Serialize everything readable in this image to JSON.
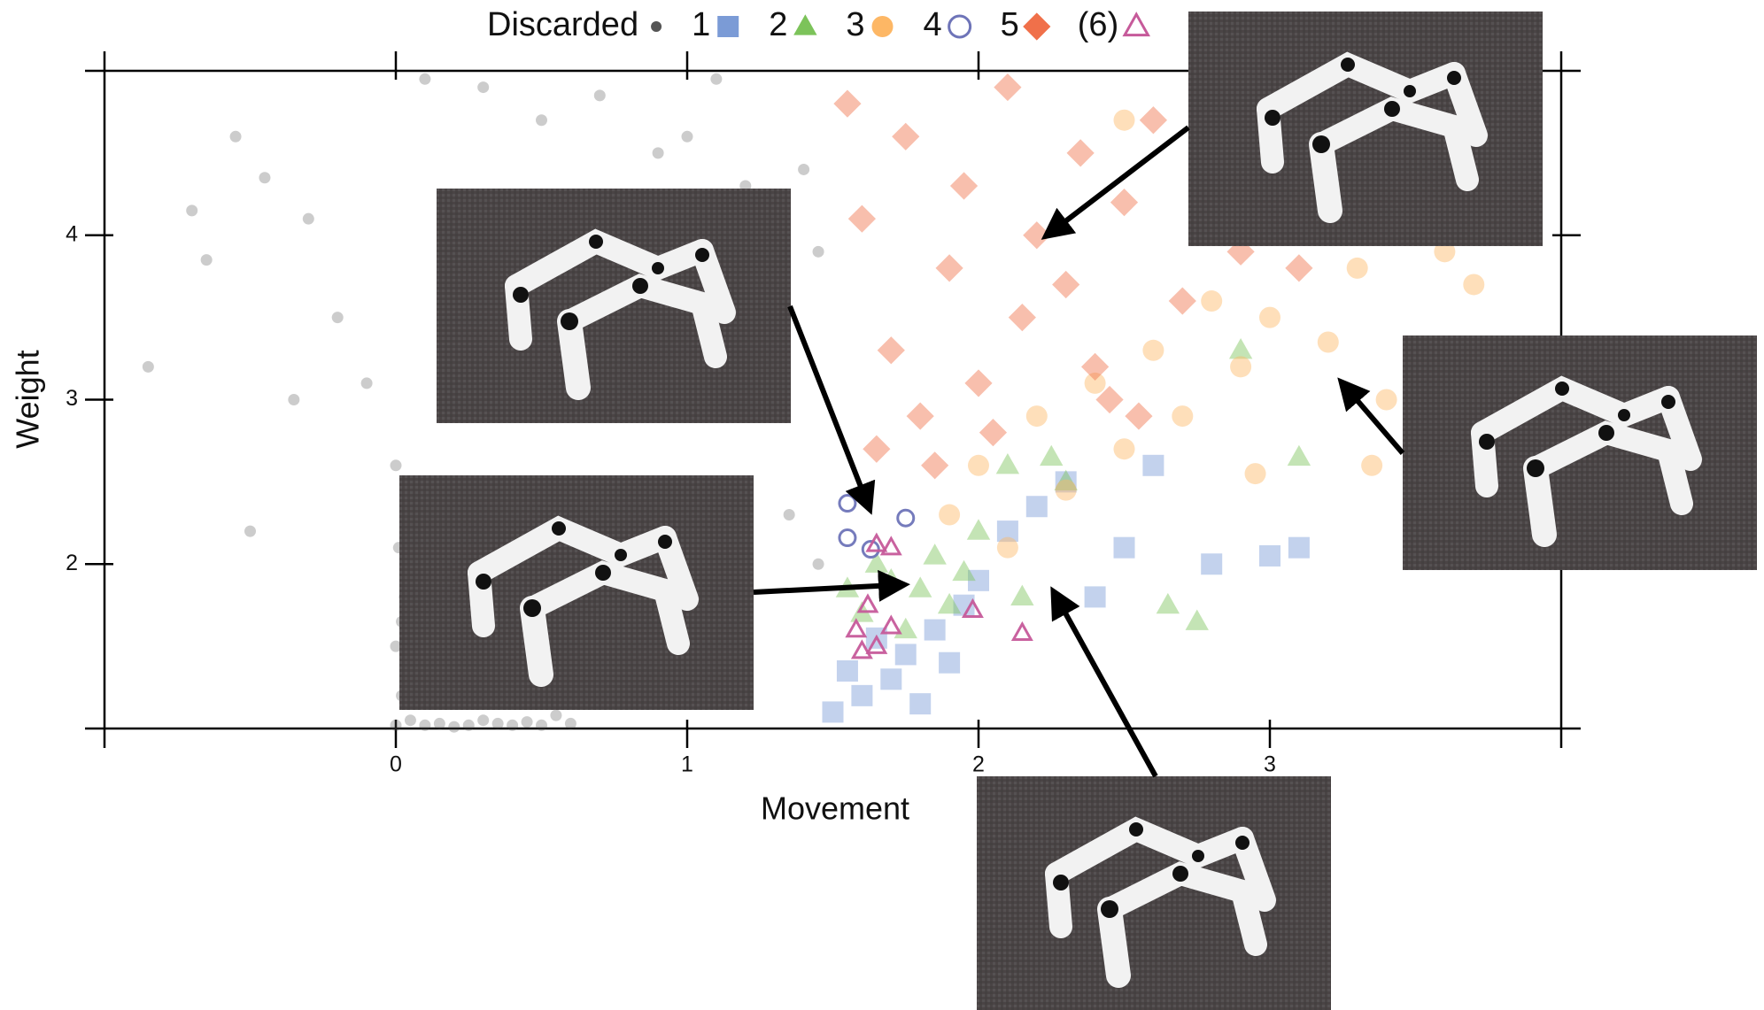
{
  "chart_data": {
    "type": "scatter",
    "x_label": "Movement",
    "y_label": "Weight",
    "xlim": [
      -1,
      4
    ],
    "ylim": [
      1,
      5
    ],
    "xticks": [
      0,
      1,
      2,
      3
    ],
    "yticks": [
      2,
      3,
      4
    ],
    "series": [
      {
        "name": "Discarded",
        "color": "#555555",
        "marker": "circle",
        "x": [
          0.0,
          0.02,
          0.05,
          0.1,
          0.15,
          0.2,
          0.25,
          0.3,
          0.35,
          0.4,
          0.45,
          0.5,
          0.55,
          0.6,
          0.0,
          0.03,
          0.08,
          0.01,
          0.02,
          0.05,
          -0.7,
          -0.55,
          -0.45,
          -0.3,
          -0.2,
          -0.1,
          0.1,
          0.3,
          0.5,
          0.7,
          0.9,
          1.0,
          1.1,
          1.2,
          1.3,
          1.4,
          1.45,
          -0.65,
          -0.35,
          0.0,
          0.2,
          0.6,
          0.95,
          1.35,
          1.45,
          -0.85,
          1.25,
          0.8,
          1.05,
          -0.5
        ],
        "y": [
          1.02,
          1.2,
          1.05,
          1.02,
          1.03,
          1.01,
          1.02,
          1.05,
          1.03,
          1.02,
          1.04,
          1.02,
          1.08,
          1.03,
          1.5,
          1.8,
          1.35,
          2.1,
          1.65,
          1.25,
          4.15,
          4.6,
          4.35,
          4.1,
          3.5,
          3.1,
          4.95,
          4.9,
          4.7,
          4.85,
          4.5,
          4.6,
          4.95,
          4.3,
          4.05,
          4.4,
          3.9,
          3.85,
          3.0,
          2.6,
          2.2,
          1.4,
          1.8,
          2.3,
          2.0,
          3.2,
          3.3,
          3.7,
          3.2,
          2.2
        ]
      },
      {
        "name": "1",
        "color": "#7b9bd6",
        "marker": "square",
        "x": [
          1.5,
          1.55,
          1.6,
          1.65,
          1.7,
          1.75,
          1.8,
          1.85,
          1.9,
          1.95,
          2.0,
          2.1,
          2.2,
          2.3,
          2.4,
          2.5,
          2.6,
          2.8,
          3.0,
          3.1
        ],
        "y": [
          1.1,
          1.35,
          1.2,
          1.55,
          1.3,
          1.45,
          1.15,
          1.6,
          1.4,
          1.75,
          1.9,
          2.2,
          2.35,
          2.5,
          1.8,
          2.1,
          2.6,
          2.0,
          2.05,
          2.1
        ]
      },
      {
        "name": "2",
        "color": "#7cc35a",
        "marker": "triangle",
        "x": [
          1.55,
          1.6,
          1.65,
          1.7,
          1.75,
          1.8,
          1.85,
          1.9,
          1.95,
          2.0,
          2.1,
          2.15,
          2.25,
          2.3,
          2.65,
          2.75,
          2.9,
          3.1
        ],
        "y": [
          1.85,
          1.7,
          2.0,
          1.9,
          1.6,
          1.85,
          2.05,
          1.75,
          1.95,
          2.2,
          2.6,
          1.8,
          2.65,
          2.5,
          1.75,
          1.65,
          3.3,
          2.65
        ]
      },
      {
        "name": "3",
        "color": "#fdb765",
        "marker": "circle",
        "x": [
          1.9,
          2.0,
          2.1,
          2.2,
          2.3,
          2.4,
          2.5,
          2.6,
          2.7,
          2.8,
          2.9,
          3.0,
          3.1,
          3.2,
          3.3,
          3.4,
          3.5,
          3.6,
          3.7,
          3.8,
          3.9,
          2.5,
          2.95,
          3.35
        ],
        "y": [
          2.3,
          2.6,
          2.1,
          2.9,
          2.45,
          3.1,
          2.7,
          3.3,
          2.9,
          3.6,
          3.2,
          3.5,
          4.0,
          3.35,
          3.8,
          3.0,
          4.2,
          3.9,
          3.7,
          4.6,
          4.55,
          4.7,
          2.55,
          2.6
        ]
      },
      {
        "name": "4",
        "color": "#6e74b8",
        "marker": "open-circle",
        "x": [
          1.55,
          1.55,
          1.63,
          1.75
        ],
        "y": [
          2.37,
          2.16,
          2.09,
          2.28
        ]
      },
      {
        "name": "5",
        "color": "#f0704a",
        "marker": "diamond",
        "x": [
          1.55,
          1.6,
          1.7,
          1.75,
          1.8,
          1.9,
          1.95,
          2.0,
          2.1,
          2.15,
          2.2,
          2.3,
          2.35,
          2.4,
          2.5,
          2.55,
          2.6,
          2.7,
          2.8,
          2.9,
          3.0,
          3.1,
          1.65,
          1.85,
          2.05,
          2.45
        ],
        "y": [
          4.8,
          4.1,
          3.3,
          4.6,
          2.9,
          3.8,
          4.3,
          3.1,
          4.9,
          3.5,
          4.0,
          3.7,
          4.5,
          3.2,
          4.2,
          2.9,
          4.7,
          3.6,
          4.4,
          3.9,
          4.1,
          3.8,
          2.7,
          2.6,
          2.8,
          3.0
        ]
      },
      {
        "name": "(6)",
        "color": "#c65a9a",
        "marker": "open-triangle",
        "x": [
          1.62,
          1.58,
          1.7,
          1.65,
          1.7,
          1.65,
          1.98,
          2.15,
          1.6
        ],
        "y": [
          1.75,
          1.6,
          1.62,
          1.5,
          2.1,
          2.12,
          1.72,
          1.58,
          1.47
        ]
      }
    ]
  }
}
